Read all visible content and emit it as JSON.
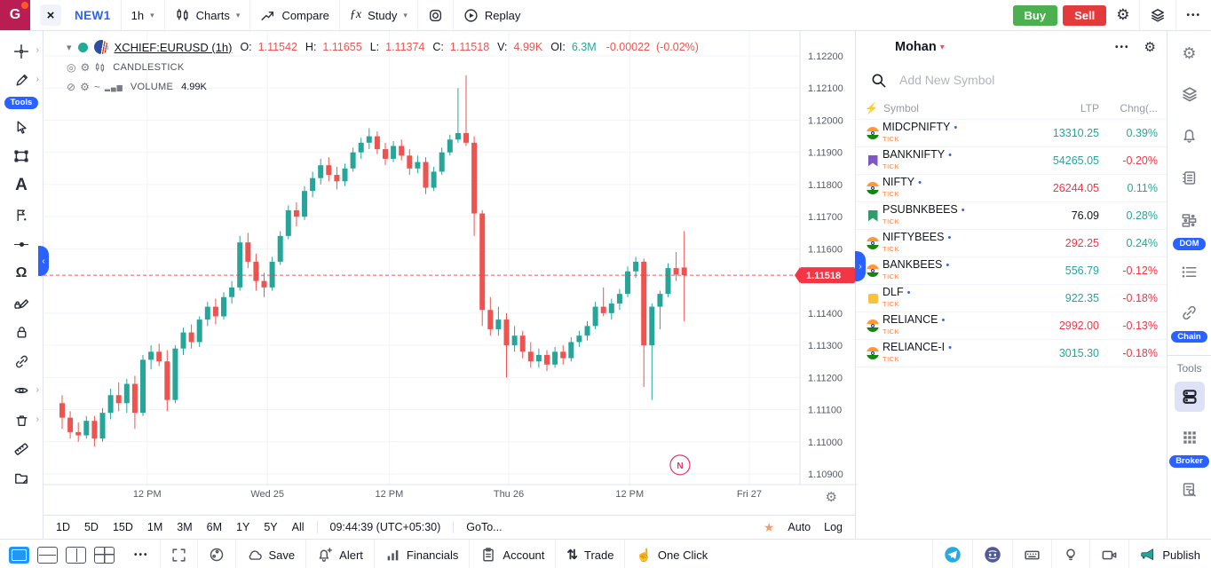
{
  "colors": {
    "accent": "#2962ff",
    "up": "#26a69a",
    "down": "#ef5350",
    "buy_button": "#4caf50",
    "sell_button": "#e23b3c",
    "last_price_tag": "#f23645",
    "logo_bg": "#b91d52",
    "badge": "#2962ff",
    "tick_label": "#ff7f3f"
  },
  "icons": {
    "chevron_down": "▾",
    "chevron_right": "›",
    "chevron_left": "‹",
    "gear": "⚙",
    "more": "•••",
    "dot": "•",
    "eye": "◎",
    "eye_off": "⊘",
    "wave": "~",
    "vol_bars": "▂▄▆",
    "star": "★",
    "bolt": "⚡",
    "magnet": "Ω",
    "text_tool": "A",
    "rect_tool": "□",
    "pattern_flag": "⚑",
    "trade_arrows": "⇅",
    "one_click_hand": "☝",
    "fx": "ƒx",
    "cloud": "☁",
    "close": "×",
    "logo_letter_shape": "text-G",
    "search": "svg-magnifier",
    "candles": "svg-two-candles",
    "compare": "svg-trend-arrow",
    "replay": "svg-circle-play",
    "instagram": "svg-rounded-square-circle",
    "layers": "svg-stacked-layers",
    "bell": "svg-bell",
    "journal": "svg-notebook",
    "dom": "svg-order-boxes",
    "object_tree": "svg-dotted-list",
    "chain": "svg-link",
    "terminal": "svg-two-servers",
    "broker_grid": "svg-9-dots",
    "doc_scan": "svg-doc-magnifier",
    "lock": "svg-padlock",
    "pen": "svg-pencil",
    "cursor": "svg-pointer",
    "trash": "svg-trash",
    "ruler": "svg-ruler",
    "folder_edit": "svg-folder-pencil",
    "crosshair": "svg-cross",
    "fullscreen": "svg-corners",
    "palette": "svg-palette",
    "alert_bell": "svg-bell-plus",
    "financials": "svg-bars",
    "account": "svg-clipboard",
    "keyboard": "svg-keyboard",
    "bulb": "svg-bulb",
    "camera": "svg-video-camera",
    "megaphone": "svg-megaphone",
    "telegram": "svg-telegram-circle",
    "discord": "svg-discord-circle"
  },
  "top_bar": {
    "logo_letter": "G",
    "close_label": "×",
    "tab_title": "NEW1",
    "interval": "1h",
    "charts_label": "Charts",
    "compare_label": "Compare",
    "study_label": "Study",
    "study_fx": "ƒx",
    "replay_label": "Replay",
    "buy_label": "Buy",
    "sell_label": "Sell"
  },
  "left_toolbar": {
    "tools_badge": "Tools"
  },
  "chart": {
    "legend": {
      "symbol": "XCHIEF:EURUSD (1h)",
      "o_label": "O:",
      "o": "1.11542",
      "h_label": "H:",
      "h": "1.11655",
      "l_label": "L:",
      "l": "1.11374",
      "c_label": "C:",
      "c": "1.11518",
      "v_label": "V:",
      "v": "4.99K",
      "oi_label": "OI:",
      "oi": "6.3M",
      "change": "-0.00022",
      "change_pct": "(-0.02%)"
    },
    "indicators": {
      "candlestick": "CANDLESTICK",
      "volume_label": "VOLUME",
      "volume_value": "4.99K"
    },
    "footer": {
      "ranges": [
        "1D",
        "5D",
        "15D",
        "1M",
        "3M",
        "6M",
        "1Y",
        "5Y",
        "All"
      ],
      "clock": "09:44:39 (UTC+05:30)",
      "goto_label": "GoTo...",
      "auto_label": "Auto",
      "log_label": "Log"
    }
  },
  "chart_data": {
    "type": "candlestick",
    "symbol": "XCHIEF:EURUSD",
    "interval": "1h",
    "ohlc_readout": {
      "open": 1.11542,
      "high": 1.11655,
      "low": 1.11374,
      "close": 1.11518,
      "volume": "4.99K",
      "open_interest": "6.3M",
      "change": -0.00022,
      "change_pct_text": "-0.02%"
    },
    "up_color": "#26a69a",
    "down_color": "#ef5350",
    "ylim": [
      1.109,
      1.122
    ],
    "y_ticks": [
      "1.12200",
      "1.12100",
      "1.12000",
      "1.11900",
      "1.11800",
      "1.11700",
      "1.11600",
      "1.11400",
      "1.11300",
      "1.11200",
      "1.11100",
      "1.11000",
      "1.10900"
    ],
    "x_ticks": [
      {
        "label": "12 PM",
        "x": 0.137
      },
      {
        "label": "Wed 25",
        "x": 0.296
      },
      {
        "label": "12 PM",
        "x": 0.457
      },
      {
        "label": "Thu 26",
        "x": 0.615
      },
      {
        "label": "12 PM",
        "x": 0.775
      },
      {
        "label": "Fri 27",
        "x": 0.933
      }
    ],
    "last_price": 1.11518,
    "last_price_label": "1.11518",
    "news_marker": {
      "label": "N",
      "x_frac": 0.8415,
      "price": 1.10928
    },
    "candles": [
      [
        1.1112,
        1.11145,
        1.1104,
        1.11075
      ],
      [
        1.11075,
        1.11095,
        1.1101,
        1.1103
      ],
      [
        1.1103,
        1.1106,
        1.11,
        1.1102
      ],
      [
        1.1102,
        1.1108,
        1.1101,
        1.11065
      ],
      [
        1.11065,
        1.1108,
        1.10985,
        1.1101
      ],
      [
        1.1101,
        1.11105,
        1.11,
        1.1109
      ],
      [
        1.1109,
        1.11165,
        1.1107,
        1.11145
      ],
      [
        1.11145,
        1.11185,
        1.11095,
        1.1112
      ],
      [
        1.1112,
        1.11195,
        1.1109,
        1.1118
      ],
      [
        1.1118,
        1.11205,
        1.1104,
        1.1109
      ],
      [
        1.1109,
        1.1127,
        1.1108,
        1.11255
      ],
      [
        1.11255,
        1.113,
        1.11225,
        1.1128
      ],
      [
        1.1128,
        1.11305,
        1.11235,
        1.1125
      ],
      [
        1.1125,
        1.11285,
        1.11095,
        1.1113
      ],
      [
        1.1113,
        1.113,
        1.1112,
        1.1129
      ],
      [
        1.1129,
        1.11355,
        1.1127,
        1.1134
      ],
      [
        1.1134,
        1.11365,
        1.1129,
        1.1131
      ],
      [
        1.1131,
        1.1139,
        1.11295,
        1.1138
      ],
      [
        1.1138,
        1.11435,
        1.1136,
        1.1142
      ],
      [
        1.1142,
        1.11445,
        1.11365,
        1.1139
      ],
      [
        1.1139,
        1.11465,
        1.1138,
        1.1145
      ],
      [
        1.1145,
        1.115,
        1.1143,
        1.1148
      ],
      [
        1.1148,
        1.1164,
        1.1147,
        1.1162
      ],
      [
        1.1162,
        1.1165,
        1.1154,
        1.1156
      ],
      [
        1.1156,
        1.11585,
        1.1147,
        1.115
      ],
      [
        1.115,
        1.11525,
        1.1145,
        1.1148
      ],
      [
        1.1148,
        1.11575,
        1.1147,
        1.1156
      ],
      [
        1.1156,
        1.11655,
        1.1155,
        1.1164
      ],
      [
        1.1164,
        1.11735,
        1.1163,
        1.1172
      ],
      [
        1.1172,
        1.11745,
        1.1167,
        1.117
      ],
      [
        1.117,
        1.11795,
        1.1169,
        1.1178
      ],
      [
        1.1178,
        1.1184,
        1.1176,
        1.1182
      ],
      [
        1.1182,
        1.1188,
        1.118,
        1.1186
      ],
      [
        1.1186,
        1.11885,
        1.1181,
        1.1183
      ],
      [
        1.1183,
        1.11855,
        1.11785,
        1.1181
      ],
      [
        1.1181,
        1.11865,
        1.11795,
        1.1185
      ],
      [
        1.1185,
        1.11915,
        1.1184,
        1.119
      ],
      [
        1.119,
        1.11945,
        1.1188,
        1.1193
      ],
      [
        1.1193,
        1.11975,
        1.1191,
        1.1195
      ],
      [
        1.1195,
        1.11965,
        1.11895,
        1.1191
      ],
      [
        1.1191,
        1.1193,
        1.1186,
        1.1188
      ],
      [
        1.1188,
        1.11935,
        1.1187,
        1.1192
      ],
      [
        1.1192,
        1.1194,
        1.11875,
        1.1189
      ],
      [
        1.1189,
        1.1191,
        1.1183,
        1.1185
      ],
      [
        1.1185,
        1.1189,
        1.11835,
        1.1187
      ],
      [
        1.1187,
        1.11885,
        1.1177,
        1.1179
      ],
      [
        1.1179,
        1.11855,
        1.1178,
        1.1184
      ],
      [
        1.1184,
        1.11915,
        1.1183,
        1.119
      ],
      [
        1.119,
        1.11955,
        1.1189,
        1.1194
      ],
      [
        1.1194,
        1.121,
        1.1193,
        1.1196
      ],
      [
        1.1196,
        1.1214,
        1.1192,
        1.1193
      ],
      [
        1.1193,
        1.1195,
        1.1164,
        1.1171
      ],
      [
        1.1171,
        1.1172,
        1.1136,
        1.1141
      ],
      [
        1.1141,
        1.1145,
        1.1133,
        1.1135
      ],
      [
        1.1135,
        1.1142,
        1.1133,
        1.1138
      ],
      [
        1.1138,
        1.114,
        1.112,
        1.113
      ],
      [
        1.113,
        1.1136,
        1.1128,
        1.1133
      ],
      [
        1.1133,
        1.11345,
        1.1126,
        1.1128
      ],
      [
        1.1128,
        1.1131,
        1.1123,
        1.1125
      ],
      [
        1.1125,
        1.1129,
        1.1123,
        1.1127
      ],
      [
        1.1127,
        1.11285,
        1.1122,
        1.1124
      ],
      [
        1.1124,
        1.11295,
        1.1123,
        1.1128
      ],
      [
        1.1128,
        1.113,
        1.1124,
        1.1126
      ],
      [
        1.1126,
        1.11325,
        1.1125,
        1.1131
      ],
      [
        1.1131,
        1.11345,
        1.11295,
        1.1133
      ],
      [
        1.1133,
        1.11375,
        1.11315,
        1.1136
      ],
      [
        1.1136,
        1.11435,
        1.1135,
        1.1142
      ],
      [
        1.1142,
        1.1148,
        1.1139,
        1.114
      ],
      [
        1.114,
        1.11445,
        1.1138,
        1.1143
      ],
      [
        1.1143,
        1.11475,
        1.1141,
        1.1146
      ],
      [
        1.1146,
        1.11545,
        1.1145,
        1.1153
      ],
      [
        1.1153,
        1.11575,
        1.1151,
        1.1156
      ],
      [
        1.1156,
        1.1157,
        1.1117,
        1.113
      ],
      [
        1.113,
        1.1143,
        1.1113,
        1.1142
      ],
      [
        1.1142,
        1.1147,
        1.1135,
        1.1146
      ],
      [
        1.1146,
        1.11555,
        1.1145,
        1.1154
      ],
      [
        1.1154,
        1.1159,
        1.115,
        1.1152
      ],
      [
        1.11542,
        1.11655,
        1.11374,
        1.11518
      ]
    ]
  },
  "watchlist": {
    "title": "Mohan",
    "search_placeholder": "Add New Symbol",
    "dot": "•",
    "columns": {
      "symbol": "Symbol",
      "ltp": "LTP",
      "chg": "Chng(..."
    },
    "rows": [
      {
        "name": "MIDCPNIFTY",
        "sub": "TICK",
        "icon": "flag",
        "ltp": "13310.25",
        "ltp_dir": "up",
        "chg": "0.39%",
        "chg_dir": "up"
      },
      {
        "name": "BANKNIFTY",
        "sub": "TICK",
        "icon": "bookmark-purple",
        "ltp": "54265.05",
        "ltp_dir": "up",
        "chg": "-0.20%",
        "chg_dir": "down"
      },
      {
        "name": "NIFTY",
        "sub": "TICK",
        "icon": "flag",
        "ltp": "26244.05",
        "ltp_dir": "down",
        "chg": "0.11%",
        "chg_dir": "up"
      },
      {
        "name": "PSUBNKBEES",
        "sub": "TICK",
        "icon": "bookmark-green",
        "ltp": "76.09",
        "ltp_dir": "flat",
        "chg": "0.28%",
        "chg_dir": "up"
      },
      {
        "name": "NIFTYBEES",
        "sub": "TICK",
        "icon": "flag",
        "ltp": "292.25",
        "ltp_dir": "down",
        "chg": "0.24%",
        "chg_dir": "up"
      },
      {
        "name": "BANKBEES",
        "sub": "TICK",
        "icon": "flag",
        "ltp": "556.79",
        "ltp_dir": "up",
        "chg": "-0.12%",
        "chg_dir": "down"
      },
      {
        "name": "DLF",
        "sub": "TICK",
        "icon": "square-yellow",
        "ltp": "922.35",
        "ltp_dir": "up",
        "chg": "-0.18%",
        "chg_dir": "down"
      },
      {
        "name": "RELIANCE",
        "sub": "TICK",
        "icon": "flag",
        "ltp": "2992.00",
        "ltp_dir": "down",
        "chg": "-0.13%",
        "chg_dir": "down"
      },
      {
        "name": "RELIANCE-I",
        "sub": "TICK",
        "icon": "flag",
        "ltp": "3015.30",
        "ltp_dir": "up",
        "chg": "-0.18%",
        "chg_dir": "down"
      }
    ]
  },
  "right_toolbar": {
    "dom_badge": "DOM",
    "chain_badge": "Chain",
    "tools_label": "Tools",
    "broker_badge": "Broker"
  },
  "bottom_bar": {
    "save_label": "Save",
    "alert_label": "Alert",
    "financials_label": "Financials",
    "account_label": "Account",
    "trade_label": "Trade",
    "one_click_label": "One Click",
    "publish_label": "Publish"
  }
}
